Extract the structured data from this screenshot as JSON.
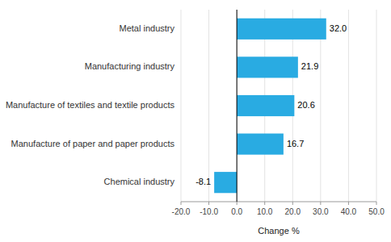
{
  "chart_data": {
    "type": "bar",
    "orientation": "horizontal",
    "categories": [
      "Chemical industry",
      "Manufacture of paper and paper products",
      "Manufacture of textiles and textile products",
      "Manufacturing industry",
      "Metal industry"
    ],
    "values": [
      -8.1,
      16.7,
      20.6,
      21.9,
      32.0
    ],
    "value_labels": [
      "-8.1",
      "16.7",
      "20.6",
      "21.9",
      "32.0"
    ],
    "color": "#29ABE2",
    "xlabel": "Change %",
    "xlim": [
      -20.0,
      50.0
    ],
    "xticks": [
      {
        "value": -20.0,
        "label": "-20.0"
      },
      {
        "value": -10.0,
        "label": "-10.0"
      },
      {
        "value": 0.0,
        "label": "0.0"
      },
      {
        "value": 10.0,
        "label": "10.0"
      },
      {
        "value": 20.0,
        "label": "20.0"
      },
      {
        "value": 30.0,
        "label": "30.0"
      },
      {
        "value": 40.0,
        "label": "40.0"
      },
      {
        "value": 50.0,
        "label": "50.0"
      }
    ],
    "grid": true,
    "data_labels": true
  }
}
